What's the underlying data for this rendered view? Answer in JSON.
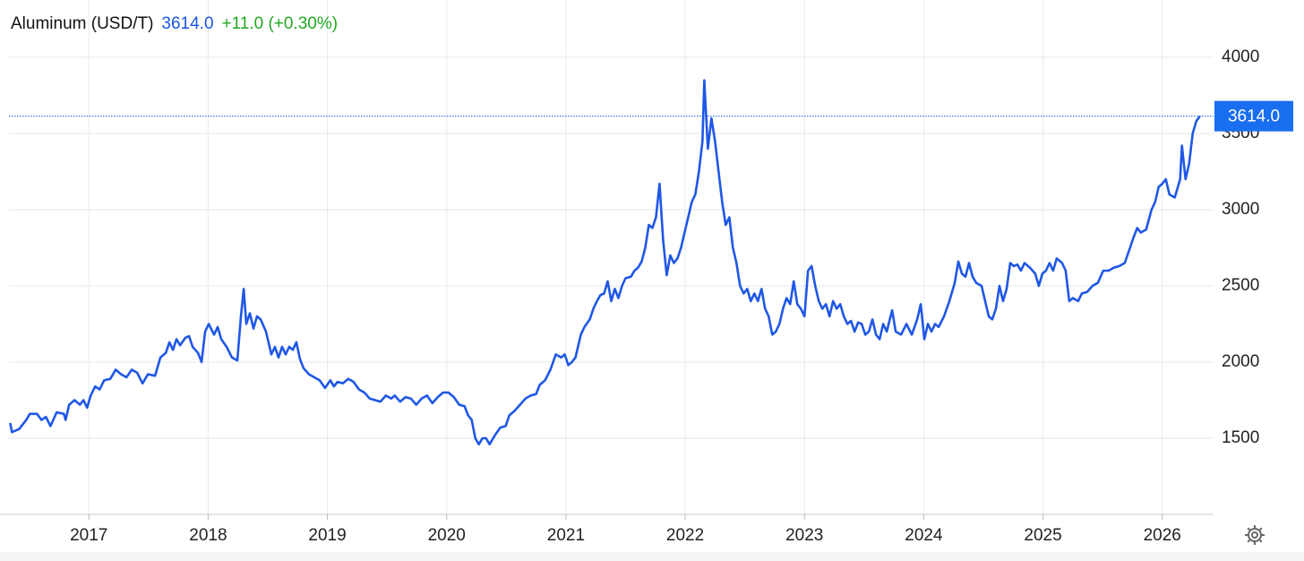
{
  "chart_data": {
    "type": "line",
    "series": [
      {
        "name": "Aluminum (USD/T)",
        "color": "#1f57e6",
        "values": [
          1600,
          1540,
          1560,
          1620,
          1660,
          1660,
          1620,
          1640,
          1580,
          1670,
          1660,
          1620,
          1720,
          1750,
          1720,
          1750,
          1700,
          1780,
          1840,
          1820,
          1880,
          1890,
          1950,
          1920,
          1900,
          1950,
          1930,
          1860,
          1920,
          1910,
          2030,
          2060,
          2130,
          2080,
          2150,
          2110,
          2160,
          2170,
          2100,
          2060,
          2000,
          2200,
          2250,
          2180,
          2230,
          2150,
          2100,
          2030,
          2010,
          2300,
          2480,
          2250,
          2320,
          2220,
          2300,
          2280,
          2200,
          2050,
          2100,
          2030,
          2100,
          2050,
          2100,
          2080,
          2130,
          2020,
          1960,
          1920,
          1900,
          1880,
          1830,
          1880,
          1840,
          1870,
          1860,
          1890,
          1870,
          1820,
          1800,
          1760,
          1750,
          1740,
          1780,
          1760,
          1780,
          1740,
          1770,
          1760,
          1720,
          1760,
          1780,
          1730,
          1770,
          1800,
          1800,
          1770,
          1720,
          1710,
          1650,
          1620,
          1500,
          1460,
          1500,
          1500,
          1460,
          1520,
          1570,
          1580,
          1650,
          1680,
          1720,
          1760,
          1780,
          1790,
          1850,
          1880,
          1950,
          2050,
          2030,
          2050,
          1980,
          2000,
          2030,
          2180,
          2230,
          2280,
          2350,
          2400,
          2440,
          2450,
          2530,
          2400,
          2480,
          2420,
          2500,
          2550,
          2560,
          2600,
          2620,
          2660,
          2750,
          2900,
          2880,
          2950,
          3170,
          2800,
          2570,
          2700,
          2650,
          2680,
          2750,
          2850,
          2950,
          3050,
          3100,
          3250,
          3450,
          3850,
          3400,
          3600,
          3450,
          3250,
          3050,
          2900,
          2950,
          2750,
          2650,
          2500,
          2450,
          2480,
          2400,
          2450,
          2400,
          2480,
          2350,
          2300,
          2180,
          2200,
          2250,
          2350,
          2420,
          2380,
          2530,
          2380,
          2350,
          2300,
          2600,
          2630,
          2500,
          2400,
          2350,
          2380,
          2300,
          2400,
          2350,
          2380,
          2300,
          2250,
          2270,
          2200,
          2260,
          2250,
          2180,
          2200,
          2280,
          2180,
          2150,
          2250,
          2200,
          2340,
          2200,
          2180,
          2250,
          2180,
          2280,
          2380,
          2150,
          2250,
          2200,
          2250,
          2230,
          2300,
          2400,
          2520,
          2660,
          2580,
          2560,
          2650,
          2560,
          2520,
          2500,
          2400,
          2300,
          2280,
          2350,
          2500,
          2400,
          2480,
          2650,
          2630,
          2640,
          2600,
          2650,
          2620,
          2580,
          2500,
          2580,
          2600,
          2650,
          2600,
          2680,
          2650,
          2600,
          2400,
          2420,
          2400,
          2450,
          2460,
          2500,
          2520,
          2600,
          2600,
          2620,
          2630,
          2650,
          2750,
          2820,
          2880,
          2850,
          2870,
          3000,
          3050,
          3150,
          3170,
          3200,
          3100,
          3080,
          3200,
          3420,
          3200,
          3300,
          3500,
          3580,
          3614
        ]
      }
    ],
    "x": [
      2016.34,
      2016.355,
      2016.415,
      2016.475,
      2016.505,
      2016.565,
      2016.603,
      2016.64,
      2016.678,
      2016.73,
      2016.79,
      2016.805,
      2016.835,
      2016.88,
      2016.925,
      2016.955,
      2016.985,
      2017.015,
      2017.053,
      2017.09,
      2017.128,
      2017.18,
      2017.225,
      2017.27,
      2017.315,
      2017.36,
      2017.405,
      2017.45,
      2017.495,
      2017.555,
      2017.6,
      2017.645,
      2017.675,
      2017.705,
      2017.735,
      2017.765,
      2017.81,
      2017.84,
      2017.87,
      2017.915,
      2017.945,
      2017.975,
      2018.005,
      2018.05,
      2018.08,
      2018.11,
      2018.155,
      2018.2,
      2018.245,
      2018.275,
      2018.298,
      2018.32,
      2018.35,
      2018.38,
      2018.41,
      2018.44,
      2018.485,
      2018.53,
      2018.56,
      2018.59,
      2018.62,
      2018.65,
      2018.68,
      2018.71,
      2018.74,
      2018.77,
      2018.8,
      2018.845,
      2018.89,
      2018.935,
      2018.98,
      2019.025,
      2019.055,
      2019.085,
      2019.13,
      2019.175,
      2019.22,
      2019.265,
      2019.31,
      2019.355,
      2019.4,
      2019.445,
      2019.49,
      2019.535,
      2019.565,
      2019.61,
      2019.655,
      2019.7,
      2019.745,
      2019.79,
      2019.835,
      2019.88,
      2019.925,
      2019.97,
      2020.015,
      2020.06,
      2020.105,
      2020.15,
      2020.18,
      2020.21,
      2020.24,
      2020.27,
      2020.3,
      2020.33,
      2020.36,
      2020.405,
      2020.45,
      2020.495,
      2020.525,
      2020.57,
      2020.615,
      2020.66,
      2020.705,
      2020.75,
      2020.78,
      2020.825,
      2020.87,
      2020.915,
      2020.96,
      2020.99,
      2021.02,
      2021.05,
      2021.08,
      2021.125,
      2021.155,
      2021.2,
      2021.23,
      2021.26,
      2021.29,
      2021.32,
      2021.35,
      2021.38,
      2021.41,
      2021.44,
      2021.47,
      2021.5,
      2021.545,
      2021.575,
      2021.605,
      2021.635,
      2021.665,
      2021.695,
      2021.725,
      2021.755,
      2021.785,
      2021.815,
      2021.845,
      2021.875,
      2021.905,
      2021.935,
      2021.965,
      2021.995,
      2022.025,
      2022.055,
      2022.085,
      2022.115,
      2022.145,
      2022.16,
      2022.19,
      2022.22,
      2022.25,
      2022.28,
      2022.31,
      2022.34,
      2022.37,
      2022.4,
      2022.43,
      2022.46,
      2022.49,
      2022.52,
      2022.55,
      2022.58,
      2022.61,
      2022.64,
      2022.67,
      2022.7,
      2022.73,
      2022.76,
      2022.79,
      2022.82,
      2022.85,
      2022.88,
      2022.91,
      2022.94,
      2022.97,
      2023.0,
      2023.03,
      2023.06,
      2023.09,
      2023.12,
      2023.15,
      2023.18,
      2023.21,
      2023.24,
      2023.27,
      2023.3,
      2023.33,
      2023.36,
      2023.39,
      2023.42,
      2023.45,
      2023.48,
      2023.51,
      2023.54,
      2023.57,
      2023.6,
      2023.63,
      2023.66,
      2023.69,
      2023.735,
      2023.765,
      2023.81,
      2023.855,
      2023.9,
      2023.945,
      2023.975,
      2024.005,
      2024.035,
      2024.065,
      2024.095,
      2024.125,
      2024.17,
      2024.215,
      2024.26,
      2024.29,
      2024.32,
      2024.35,
      2024.38,
      2024.41,
      2024.44,
      2024.485,
      2024.515,
      2024.545,
      2024.575,
      2024.605,
      2024.635,
      2024.665,
      2024.695,
      2024.725,
      2024.755,
      2024.785,
      2024.815,
      2024.845,
      2024.89,
      2024.935,
      2024.965,
      2024.995,
      2025.025,
      2025.055,
      2025.085,
      2025.115,
      2025.16,
      2025.19,
      2025.22,
      2025.25,
      2025.295,
      2025.325,
      2025.37,
      2025.415,
      2025.46,
      2025.505,
      2025.55,
      2025.595,
      2025.64,
      2025.685,
      2025.73,
      2025.76,
      2025.79,
      2025.82,
      2025.865,
      2025.91,
      2025.94,
      2025.97,
      2026.0,
      2026.03,
      2026.06,
      2026.105,
      2026.15,
      2026.165,
      2026.195,
      2026.225,
      2026.255,
      2026.285,
      2026.315
    ],
    "last_price": {
      "value": 3614,
      "label": "3614.0"
    },
    "change": "+11.0 (+0.30%)",
    "xlim": [
      2016.33,
      2026.43
    ],
    "xticks": [
      2017,
      2018,
      2019,
      2020,
      2021,
      2022,
      2023,
      2024,
      2025,
      2026
    ],
    "ylim": [
      1000,
      4300
    ],
    "yticks": [
      1500,
      2000,
      2500,
      3000,
      3500,
      4000
    ],
    "grid": true
  }
}
